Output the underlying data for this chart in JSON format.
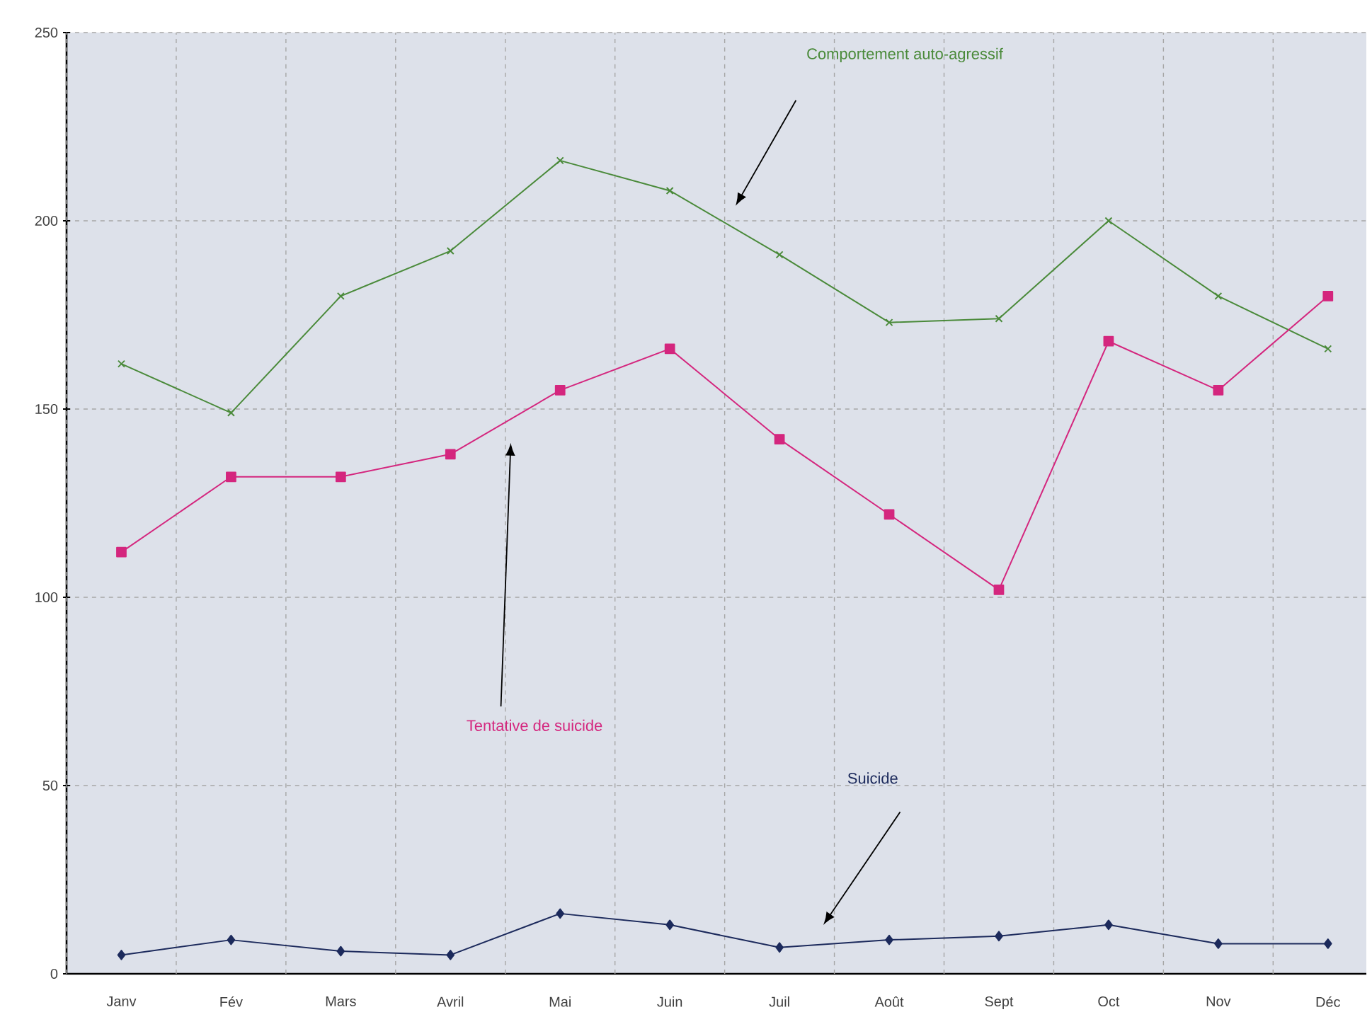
{
  "chart_data": {
    "type": "line",
    "categories": [
      "Janv",
      "Fév",
      "Mars",
      "Avril",
      "Mai",
      "Juin",
      "Juil",
      "Août",
      "Sept",
      "Oct",
      "Nov",
      "Déc"
    ],
    "series": [
      {
        "name": "Comportement auto-agressif",
        "color": "#4a8a3a",
        "marker": "cross",
        "values": [
          162,
          149,
          180,
          192,
          216,
          208,
          191,
          173,
          174,
          200,
          180,
          166
        ]
      },
      {
        "name": "Tentative de suicide",
        "color": "#d4267e",
        "marker": "square",
        "values": [
          112,
          132,
          132,
          138,
          155,
          166,
          142,
          122,
          102,
          168,
          155,
          180
        ]
      },
      {
        "name": "Suicide",
        "color": "#1c2a5c",
        "marker": "diamond",
        "values": [
          5,
          9,
          6,
          5,
          16,
          13,
          7,
          9,
          10,
          13,
          8,
          8
        ]
      }
    ],
    "ylim": [
      0,
      250
    ],
    "yticks": [
      0,
      50,
      100,
      150,
      200,
      250
    ],
    "grid": true,
    "legend": false,
    "line_style": "solid"
  }
}
